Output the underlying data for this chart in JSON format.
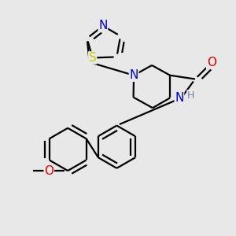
{
  "background_color": "#e8e8e8",
  "atom_colors": {
    "C": "#000000",
    "N": "#0000cc",
    "O": "#dd0000",
    "S": "#cccc00",
    "H": "#708090"
  },
  "bond_color": "#000000",
  "bond_width": 1.6,
  "font_size_atom": 11,
  "font_size_H": 9
}
